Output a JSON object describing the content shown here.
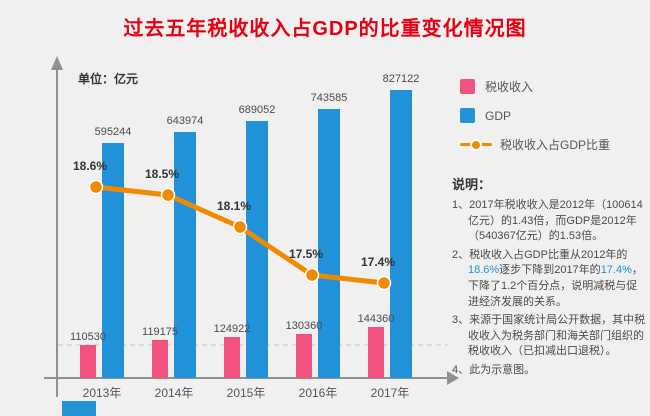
{
  "title": "过去五年税收收入占GDP的比重变化情况图",
  "unit_label": "单位：亿元",
  "colors": {
    "title": "#e60012",
    "tax_bar": "#f1537e",
    "gdp_bar": "#2191d9",
    "ratio_line": "#f08a00",
    "background": "#f0f0f0",
    "axis": "#909090"
  },
  "legend": [
    {
      "label": "税收收入",
      "swatch": "pink-square"
    },
    {
      "label": "GDP",
      "swatch": "blue-square"
    },
    {
      "label": "税收收入占GDP比重",
      "swatch": "orange-line-dot"
    }
  ],
  "notes": {
    "heading": "说明：",
    "items": [
      {
        "num": "1、",
        "text": "2017年税收收入是2012年（100614亿元）的1.43倍，而GDP是2012年（540367亿元）的1.53倍。",
        "highlights": []
      },
      {
        "num": "2、",
        "text": "税收收入占GDP比重从2012年的18.6%逐步下降到2017年的17.4%，下降了1.2个百分点，说明减税与促进经济发展的关系。",
        "highlights": [
          "18.6%",
          "17.4%"
        ]
      },
      {
        "num": "3、",
        "text": "来源于国家统计局公开数据，其中税收收入为税务部门和海关部门组织的税收收入（已扣减出口退税）。",
        "highlights": []
      },
      {
        "num": "4、",
        "text": "此为示意图。",
        "highlights": []
      }
    ]
  },
  "chart_data": {
    "type": "bar+line",
    "title": "过去五年税收收入占GDP的比重变化情况图",
    "ylabel": "单位：亿元",
    "legend_position": "right",
    "value_labels_shown": true,
    "categories": [
      "2013年",
      "2014年",
      "2015年",
      "2016年",
      "2017年"
    ],
    "series": [
      {
        "name": "税收收入",
        "type": "bar",
        "color": "#f1537e",
        "values": [
          110530,
          119175,
          124922,
          130360,
          144360
        ]
      },
      {
        "name": "GDP",
        "type": "bar",
        "color": "#2191d9",
        "values": [
          595244,
          643974,
          689052,
          743585,
          827122
        ]
      },
      {
        "name": "税收收入占GDP比重",
        "type": "line",
        "color": "#f08a00",
        "values": [
          18.6,
          18.5,
          18.1,
          17.5,
          17.4
        ],
        "labels": [
          "18.6%",
          "18.5%",
          "18.1%",
          "17.5%",
          "17.4%"
        ]
      }
    ]
  }
}
